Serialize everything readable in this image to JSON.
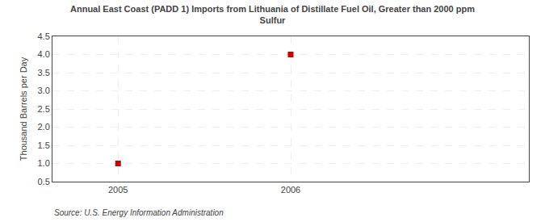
{
  "chart_data": {
    "type": "scatter",
    "title": "Annual East Coast (PADD 1) Imports from Lithuania of Distillate Fuel Oil, Greater than 2000 ppm\nSulfur",
    "y_label": "Thousand Barrels per Day",
    "annotations": [
      "Source: U.S. Energy Information Administration"
    ],
    "x": [
      2005,
      2006
    ],
    "values": [
      1.0,
      4.0
    ],
    "color": "#cc0000",
    "marker": "square",
    "xlim": [
      2004.62,
      2007.38
    ],
    "xticks": [
      2005,
      2006
    ],
    "ylim": [
      0.5,
      4.5
    ],
    "yticks": [
      0.5,
      {
        "value": 1.0,
        "label": "1.0"
      },
      1.5,
      {
        "value": 2.0,
        "label": "2.0"
      },
      2.5,
      {
        "value": 3.0,
        "label": "3.0"
      },
      3.5,
      {
        "value": 4.0,
        "label": "4.0"
      },
      4.5
    ],
    "grid": true
  }
}
